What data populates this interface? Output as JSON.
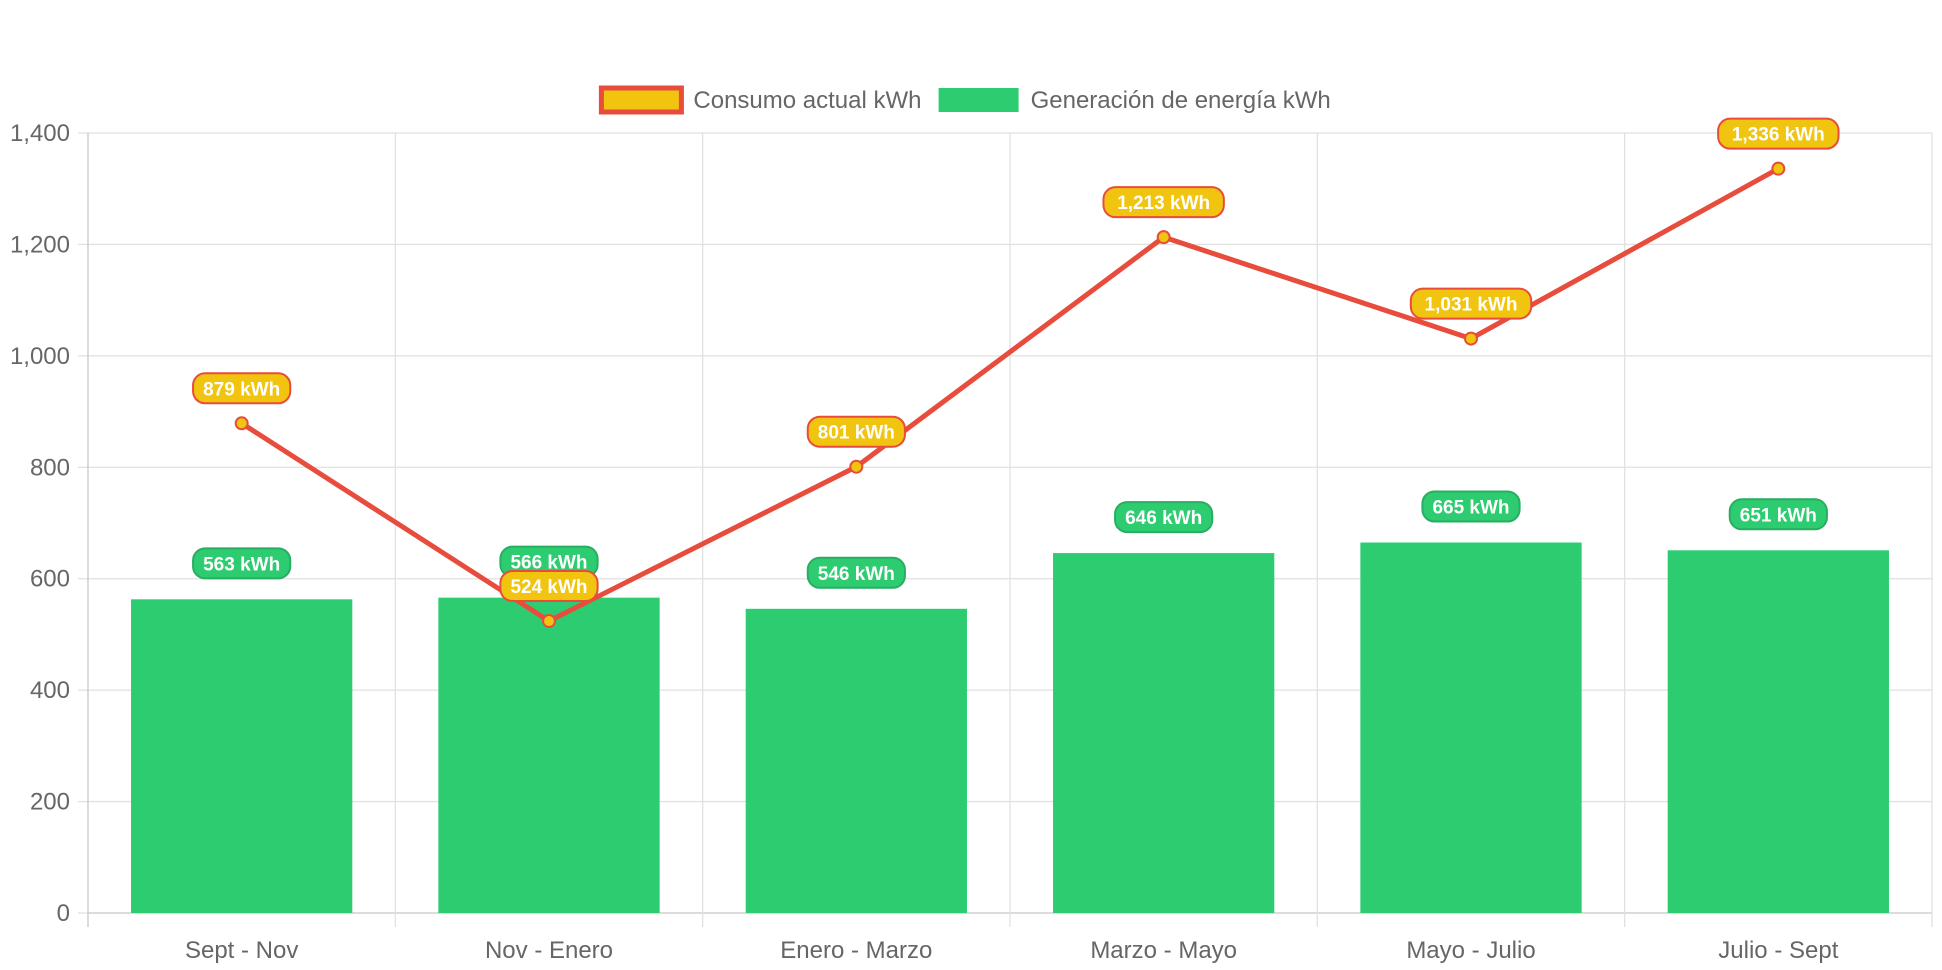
{
  "chart_data": {
    "type": "bar",
    "categories": [
      "Sept - Nov",
      "Nov - Enero",
      "Enero - Marzo",
      "Marzo - Mayo",
      "Mayo - Julio",
      "Julio - Sept"
    ],
    "series": [
      {
        "name": "Consumo actual kWh",
        "type": "line",
        "values": [
          879,
          524,
          801,
          1213,
          1031,
          1336
        ],
        "data_labels": [
          "879 kWh",
          "524 kWh",
          "801 kWh",
          "1,213 kWh",
          "1,031 kWh",
          "1,336 kWh"
        ],
        "color": "#e74c3c",
        "fill_color": "#f1c40f"
      },
      {
        "name": "Generación de energía kWh",
        "type": "bar",
        "values": [
          563,
          566,
          546,
          646,
          665,
          651
        ],
        "data_labels": [
          "563 kWh",
          "566 kWh",
          "546 kWh",
          "646 kWh",
          "665 kWh",
          "651 kWh"
        ],
        "color": "#2ecc71",
        "border_color": "#27ae60"
      }
    ],
    "ylim": [
      0,
      1400
    ],
    "y_ticks": [
      0,
      200,
      400,
      600,
      800,
      1000,
      1200,
      1400
    ],
    "y_tick_labels": [
      "0",
      "200",
      "400",
      "600",
      "800",
      "1,000",
      "1,200",
      "1,400"
    ],
    "grid": true,
    "legend_position": "top",
    "title": "",
    "xlabel": "",
    "ylabel": ""
  }
}
